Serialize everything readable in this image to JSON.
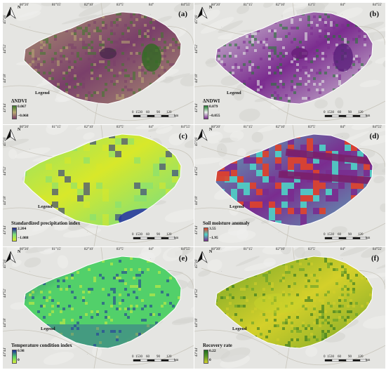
{
  "figure": {
    "top_ticks": [
      "80°20'",
      "81°15'",
      "82°10'",
      "83°5'",
      "84°",
      "84°55'"
    ],
    "left_ticks": [
      "45°26'",
      "44°52'",
      "44°18'",
      "43°44'"
    ],
    "scale": {
      "labels": [
        "0",
        "15",
        "30",
        "60",
        "90",
        "120"
      ],
      "unit": "km"
    },
    "north_label": "N",
    "legend_heading": "Legend",
    "panels": [
      {
        "label": "(a)",
        "legend_title": "ΔNDVI",
        "max": "0.067",
        "min": "−0.068",
        "colors": {
          "high": "#3d7a2a",
          "low": "#7a3f6a",
          "mid": "#b9aa72"
        }
      },
      {
        "label": "(b)",
        "legend_title": "ΔNDWI",
        "max": "0.079",
        "min": "−0.055",
        "colors": {
          "high": "#1f7a2e",
          "low": "#7b2c8f",
          "mid": "#eaf2ea"
        }
      },
      {
        "label": "(c)",
        "legend_title": "Standardized precipitation index",
        "max": "2.204",
        "min": "−1.088",
        "colors": {
          "high": "#1b1f8f",
          "low": "#d8e82a",
          "mid": "#7fe07a"
        }
      },
      {
        "label": "(d)",
        "legend_title": "Soil moisture anomaly",
        "max": "3.55",
        "min": "−1.95",
        "colors": {
          "high": "#e0422a",
          "low": "#7a2c8f",
          "mid": "#4fd3c7"
        }
      },
      {
        "label": "(e)",
        "legend_title": "Temperature condition index",
        "max": "0.98",
        "min": "0",
        "colors": {
          "high": "#1b2a9a",
          "low": "#d7ee3a",
          "mid": "#52d06a"
        }
      },
      {
        "label": "(f)",
        "legend_title": "Recovery rate",
        "max": "0.22",
        "min": "0",
        "colors": {
          "high": "#1f6b1f",
          "low": "#d4d02a",
          "mid": "#5a9a2a"
        }
      }
    ]
  }
}
